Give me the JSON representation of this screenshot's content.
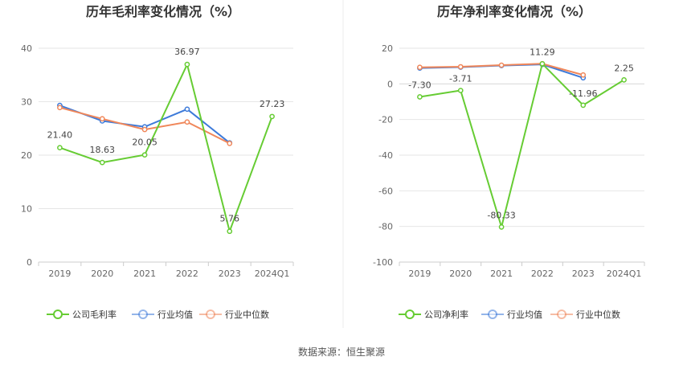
{
  "source": "数据来源：恒生聚源",
  "colors": {
    "company": "#66cc33",
    "avg": "#3d7ad9",
    "median": "#f0875a"
  },
  "chart_data": [
    {
      "type": "line",
      "title": "历年毛利率变化情况（%）",
      "categories": [
        "2019",
        "2020",
        "2021",
        "2022",
        "2023",
        "2024Q1"
      ],
      "ylim": [
        0,
        40
      ],
      "yticks": [
        0,
        10,
        20,
        30,
        40
      ],
      "grid": true,
      "legend": "bottom",
      "series": [
        {
          "key": "company",
          "name": "公司毛利率",
          "values": [
            21.4,
            18.63,
            20.05,
            36.97,
            5.76,
            27.23
          ],
          "labels": [
            "21.40",
            "18.63",
            "20.05",
            "36.97",
            "5.76",
            "27.23"
          ]
        },
        {
          "key": "avg",
          "name": "行业均值",
          "values": [
            29.3,
            26.4,
            25.3,
            28.6,
            22.3,
            null
          ]
        },
        {
          "key": "median",
          "name": "行业中位数",
          "values": [
            28.9,
            26.8,
            24.8,
            26.2,
            22.2,
            null
          ]
        }
      ]
    },
    {
      "type": "line",
      "title": "历年净利率变化情况（%）",
      "categories": [
        "2019",
        "2020",
        "2021",
        "2022",
        "2023",
        "2024Q1"
      ],
      "ylim": [
        -100,
        20
      ],
      "yticks": [
        -100,
        -80,
        -60,
        -40,
        -20,
        0,
        20
      ],
      "grid": true,
      "legend": "bottom",
      "series": [
        {
          "key": "company",
          "name": "公司净利率",
          "values": [
            -7.3,
            -3.71,
            -80.33,
            11.29,
            -11.96,
            2.25
          ],
          "labels": [
            "-7.30",
            "-3.71",
            "-80.33",
            "11.29",
            "-11.96",
            "2.25"
          ]
        },
        {
          "key": "avg",
          "name": "行业均值",
          "values": [
            8.9,
            9.4,
            10.3,
            10.9,
            3.4,
            null
          ]
        },
        {
          "key": "median",
          "name": "行业中位数",
          "values": [
            9.3,
            9.6,
            10.5,
            11.3,
            5.0,
            null
          ]
        }
      ]
    }
  ]
}
